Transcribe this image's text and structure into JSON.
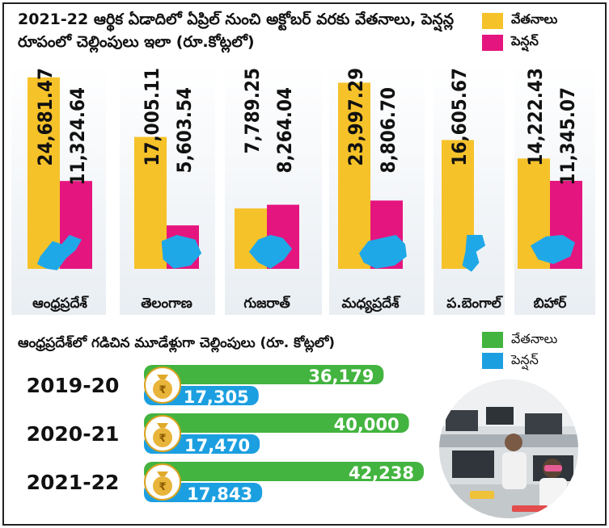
{
  "top": {
    "title": "2021-22 ఆర్థిక ఏడాదిలో ఏప్రిల్ నుంచి అక్టోబర్ వరకు వేతనాలు, పెన్షన్ల రూపంలో చెల్లింపులు ఇలా (రూ.కోట్లలో)",
    "legend": [
      {
        "label": "వేతనాలు",
        "color": "#f6c22a"
      },
      {
        "label": "పెన్షన్",
        "color": "#e5157f"
      }
    ]
  },
  "bottom": {
    "title": "ఆంధ్రప్రదేశ్‌లో గడిచిన మూడేళ్లుగా చెల్లింపులు (రూ. కోట్లలో)",
    "legend": [
      {
        "label": "వేతనాలు",
        "color": "#43b43f"
      },
      {
        "label": "పెన్షన్",
        "color": "#1c9fe0"
      }
    ]
  },
  "chart_data": [
    {
      "type": "bar",
      "title": "2021-22 ఆర్థిక ఏడాదిలో ఏప్రిల్ నుంచి అక్టోబర్ వరకు వేతనాలు, పెన్షన్ల రూపంలో చెల్లింపులు ఇలా (రూ.కోట్లలో)",
      "categories": [
        "ఆంధ్రప్రదేశ్",
        "తెలంగాణ",
        "గుజరాత్",
        "మధ్యప్రదేశ్",
        "ప.బెంగాల్",
        "బిహార్"
      ],
      "series": [
        {
          "name": "వేతనాలు",
          "color": "#f6c22a",
          "values": [
            24681.47,
            17005.11,
            7789.25,
            23997.29,
            16605.67,
            14222.43
          ],
          "labels": [
            "24,681.47",
            "17,005.11",
            "7,789.25",
            "23,997.29",
            "16,605.67",
            "14,222.43"
          ]
        },
        {
          "name": "పెన్షన్",
          "color": "#e5157f",
          "values": [
            11324.64,
            5603.54,
            8264.04,
            8806.7,
            null,
            11345.07
          ],
          "labels": [
            "11,324.64",
            "5,603.54",
            "8,264.04",
            "8,806.70",
            "",
            "11,345.07"
          ]
        }
      ],
      "legend_position": "top-right"
    },
    {
      "type": "bar",
      "orientation": "horizontal",
      "title": "ఆంధ్రప్రదేశ్‌లో గడిచిన మూడేళ్లుగా చెల్లింపులు (రూ. కోట్లలో)",
      "categories": [
        "2019-20",
        "2020-21",
        "2021-22"
      ],
      "series": [
        {
          "name": "వేతనాలు",
          "color": "#43b43f",
          "values": [
            36179,
            40000,
            42238
          ],
          "labels": [
            "36,179",
            "40,000",
            "42,238"
          ]
        },
        {
          "name": "పెన్షన్",
          "color": "#1c9fe0",
          "values": [
            17305,
            17470,
            17843
          ],
          "labels": [
            "17,305",
            "17,470",
            "17,843"
          ]
        }
      ],
      "legend_position": "top-right"
    }
  ]
}
